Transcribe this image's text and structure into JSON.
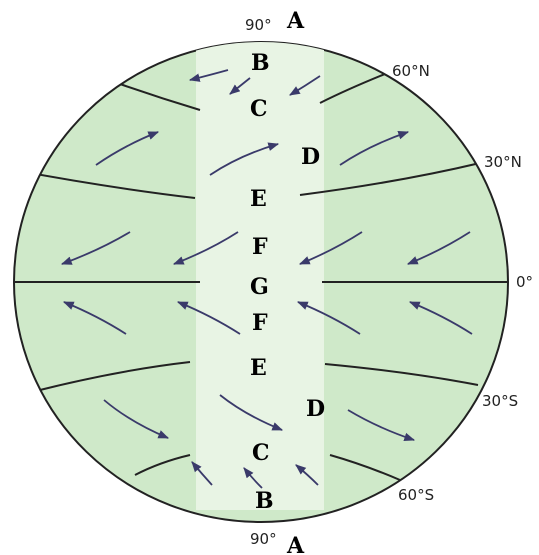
{
  "lat_labels": {
    "north_pole": "90°",
    "n60": "60°N",
    "n30": "30°N",
    "equator": "0°",
    "s30": "30°S",
    "s60": "60°S",
    "south_pole": "90°"
  },
  "zones": {
    "north_pole": "A",
    "n_b": "B",
    "n_c": "C",
    "n_d": "D",
    "n_e": "E",
    "n_f": "F",
    "equator": "G",
    "s_f": "F",
    "s_e": "E",
    "s_d": "D",
    "s_c": "C",
    "s_b": "B",
    "south_pole": "A"
  },
  "colors": {
    "globe_fill": "#cfe9c9",
    "globe_stroke": "#222222",
    "arrow": "#3a3a6a",
    "label_bg": "#ffffff"
  }
}
